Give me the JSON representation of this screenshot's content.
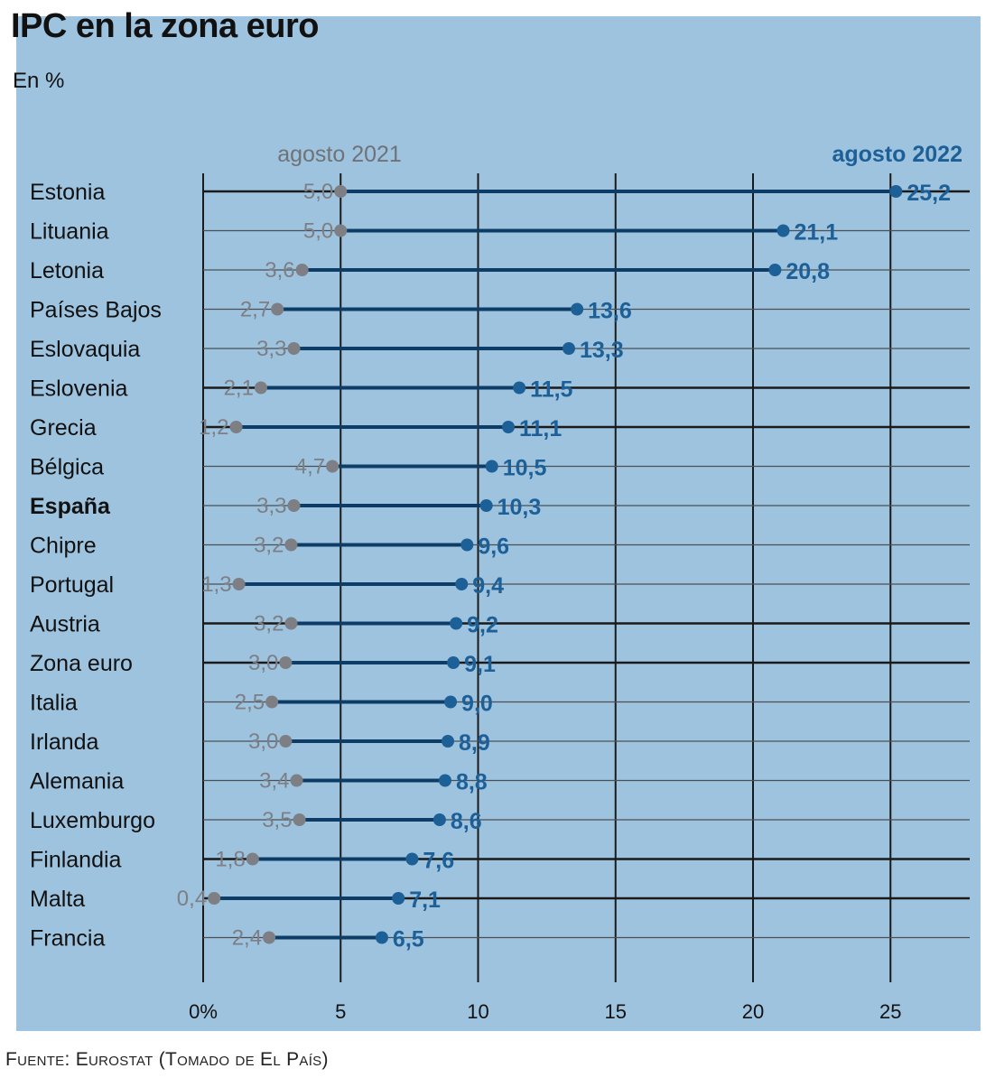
{
  "title": "IPC en la zona euro",
  "unit": "En %",
  "source": "Fuente: Eurostat (Tomado de El País)",
  "colors": {
    "background": "#9ec3de",
    "series_2021": "#7d7f85",
    "series_2022": "#1d5f97",
    "connector": "#0d3d66"
  },
  "chart_data": {
    "type": "dumbbell",
    "series": [
      {
        "name": "agosto 2021",
        "values": [
          5.0,
          5.0,
          3.6,
          2.7,
          3.3,
          2.1,
          1.2,
          4.7,
          3.3,
          3.2,
          1.3,
          3.2,
          3.0,
          2.5,
          3.0,
          3.4,
          3.5,
          1.8,
          0.4,
          2.4
        ]
      },
      {
        "name": "agosto 2022",
        "values": [
          25.2,
          21.1,
          20.8,
          13.6,
          13.3,
          11.5,
          11.1,
          10.5,
          10.3,
          9.6,
          9.4,
          9.2,
          9.1,
          9.0,
          8.9,
          8.8,
          8.6,
          7.6,
          7.1,
          6.5
        ]
      }
    ],
    "categories": [
      "Estonia",
      "Lituania",
      "Letonia",
      "Países Bajos",
      "Eslovaquia",
      "Eslovenia",
      "Grecia",
      "Bélgica",
      "España",
      "Chipre",
      "Portugal",
      "Austria",
      "Zona euro",
      "Italia",
      "Irlanda",
      "Alemania",
      "Luxemburgo",
      "Finlandia",
      "Malta",
      "Francia"
    ],
    "highlighted_category": "España",
    "labels_2021": [
      "5,0",
      "5,0",
      "3,6",
      "2,7",
      "3,3",
      "2,1",
      "1,2",
      "4,7",
      "3,3",
      "3,2",
      "1,3",
      "3,2",
      "3,0",
      "2,5",
      "3,0",
      "3,4",
      "3,5",
      "1,8",
      "0,4",
      "2,4"
    ],
    "labels_2022": [
      "25,2",
      "21,1",
      "20,8",
      "13,6",
      "13,3",
      "11,5",
      "11,1",
      "10,5",
      "10,3",
      "9,6",
      "9,4",
      "9,2",
      "9,1",
      "9,0",
      "8,9",
      "8,8",
      "8,6",
      "7,6",
      "7,1",
      "6,5"
    ],
    "x_ticks": [
      0,
      5,
      10,
      15,
      20,
      25
    ],
    "x_tick_labels": [
      "0%",
      "5",
      "10",
      "15",
      "20",
      "25"
    ],
    "xlim": [
      0,
      28
    ],
    "grid": true,
    "legend": "top, as column headers"
  }
}
